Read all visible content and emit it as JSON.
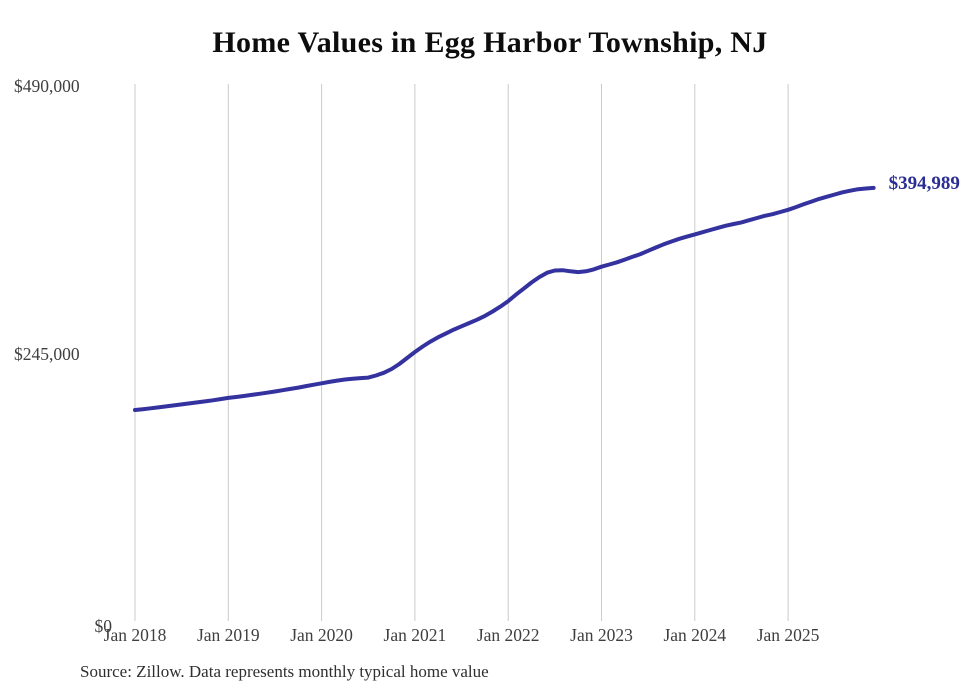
{
  "page": {
    "background_color": "#ffffff"
  },
  "chart": {
    "title": "Home Values in Egg Harbor Township, NJ",
    "source_note": "Source: Zillow. Data represents monthly typical home value"
  },
  "chart_data": {
    "type": "line",
    "title": "Home Values in Egg Harbor Township, NJ",
    "xlabel": "",
    "ylabel": "",
    "unit": "USD",
    "ylim": [
      0,
      490000
    ],
    "grid": "vertical-only",
    "legend": "none",
    "line_color": "#34329e",
    "end_label_color": "#2a2d93",
    "end_label": "$394,989",
    "latest_value": 394989,
    "y_ticks": [
      {
        "value": 490000,
        "label": "$490,000"
      },
      {
        "value": 245000,
        "label": "$245,000"
      },
      {
        "value": 0,
        "label": "$0"
      }
    ],
    "x_tick_labels": [
      "Jan 2018",
      "Jan 2019",
      "Jan 2020",
      "Jan 2021",
      "Jan 2022",
      "Jan 2023",
      "Jan 2024",
      "Jan 2025"
    ],
    "x": [
      "2018-01",
      "2018-02",
      "2018-03",
      "2018-04",
      "2018-05",
      "2018-06",
      "2018-07",
      "2018-08",
      "2018-09",
      "2018-10",
      "2018-11",
      "2018-12",
      "2019-01",
      "2019-02",
      "2019-03",
      "2019-04",
      "2019-05",
      "2019-06",
      "2019-07",
      "2019-08",
      "2019-09",
      "2019-10",
      "2019-11",
      "2019-12",
      "2020-01",
      "2020-02",
      "2020-03",
      "2020-04",
      "2020-05",
      "2020-06",
      "2020-07",
      "2020-08",
      "2020-09",
      "2020-10",
      "2020-11",
      "2020-12",
      "2021-01",
      "2021-02",
      "2021-03",
      "2021-04",
      "2021-05",
      "2021-06",
      "2021-07",
      "2021-08",
      "2021-09",
      "2021-10",
      "2021-11",
      "2021-12",
      "2022-01",
      "2022-02",
      "2022-03",
      "2022-04",
      "2022-05",
      "2022-06",
      "2022-07",
      "2022-08",
      "2022-09",
      "2022-10",
      "2022-11",
      "2022-12",
      "2023-01",
      "2023-02",
      "2023-03",
      "2023-04",
      "2023-05",
      "2023-06",
      "2023-07",
      "2023-08",
      "2023-09",
      "2023-10",
      "2023-11",
      "2023-12",
      "2024-01",
      "2024-02",
      "2024-03",
      "2024-04",
      "2024-05",
      "2024-06",
      "2024-07",
      "2024-08",
      "2024-09",
      "2024-10",
      "2024-11",
      "2024-12",
      "2025-01",
      "2025-02",
      "2025-03",
      "2025-04",
      "2025-05",
      "2025-06",
      "2025-07",
      "2025-08",
      "2025-09",
      "2025-10",
      "2025-11",
      "2025-12"
    ],
    "series": [
      {
        "name": "Monthly typical home value",
        "values": [
          192000,
          192700,
          193500,
          194400,
          195300,
          196200,
          197100,
          198000,
          198900,
          199800,
          200800,
          201900,
          203000,
          203900,
          204800,
          205800,
          206800,
          207800,
          208900,
          210100,
          211300,
          212500,
          213800,
          215100,
          216400,
          217700,
          218900,
          219900,
          220600,
          221100,
          221600,
          223500,
          226000,
          229500,
          234000,
          239500,
          245000,
          250000,
          254500,
          258500,
          262000,
          265500,
          268500,
          271500,
          274500,
          278000,
          282000,
          286500,
          291500,
          297500,
          303000,
          308500,
          313500,
          317500,
          319500,
          319800,
          318800,
          318000,
          318800,
          320500,
          323000,
          325000,
          327000,
          329500,
          332000,
          334500,
          337500,
          340500,
          343500,
          346000,
          348500,
          350500,
          352500,
          354500,
          356500,
          358500,
          360500,
          362000,
          363500,
          365500,
          367500,
          369500,
          371000,
          373000,
          375000,
          377500,
          380000,
          382500,
          385000,
          387000,
          389000,
          391000,
          392500,
          393800,
          394500,
          394989
        ]
      }
    ],
    "source": "Source: Zillow. Data represents monthly typical home value"
  }
}
